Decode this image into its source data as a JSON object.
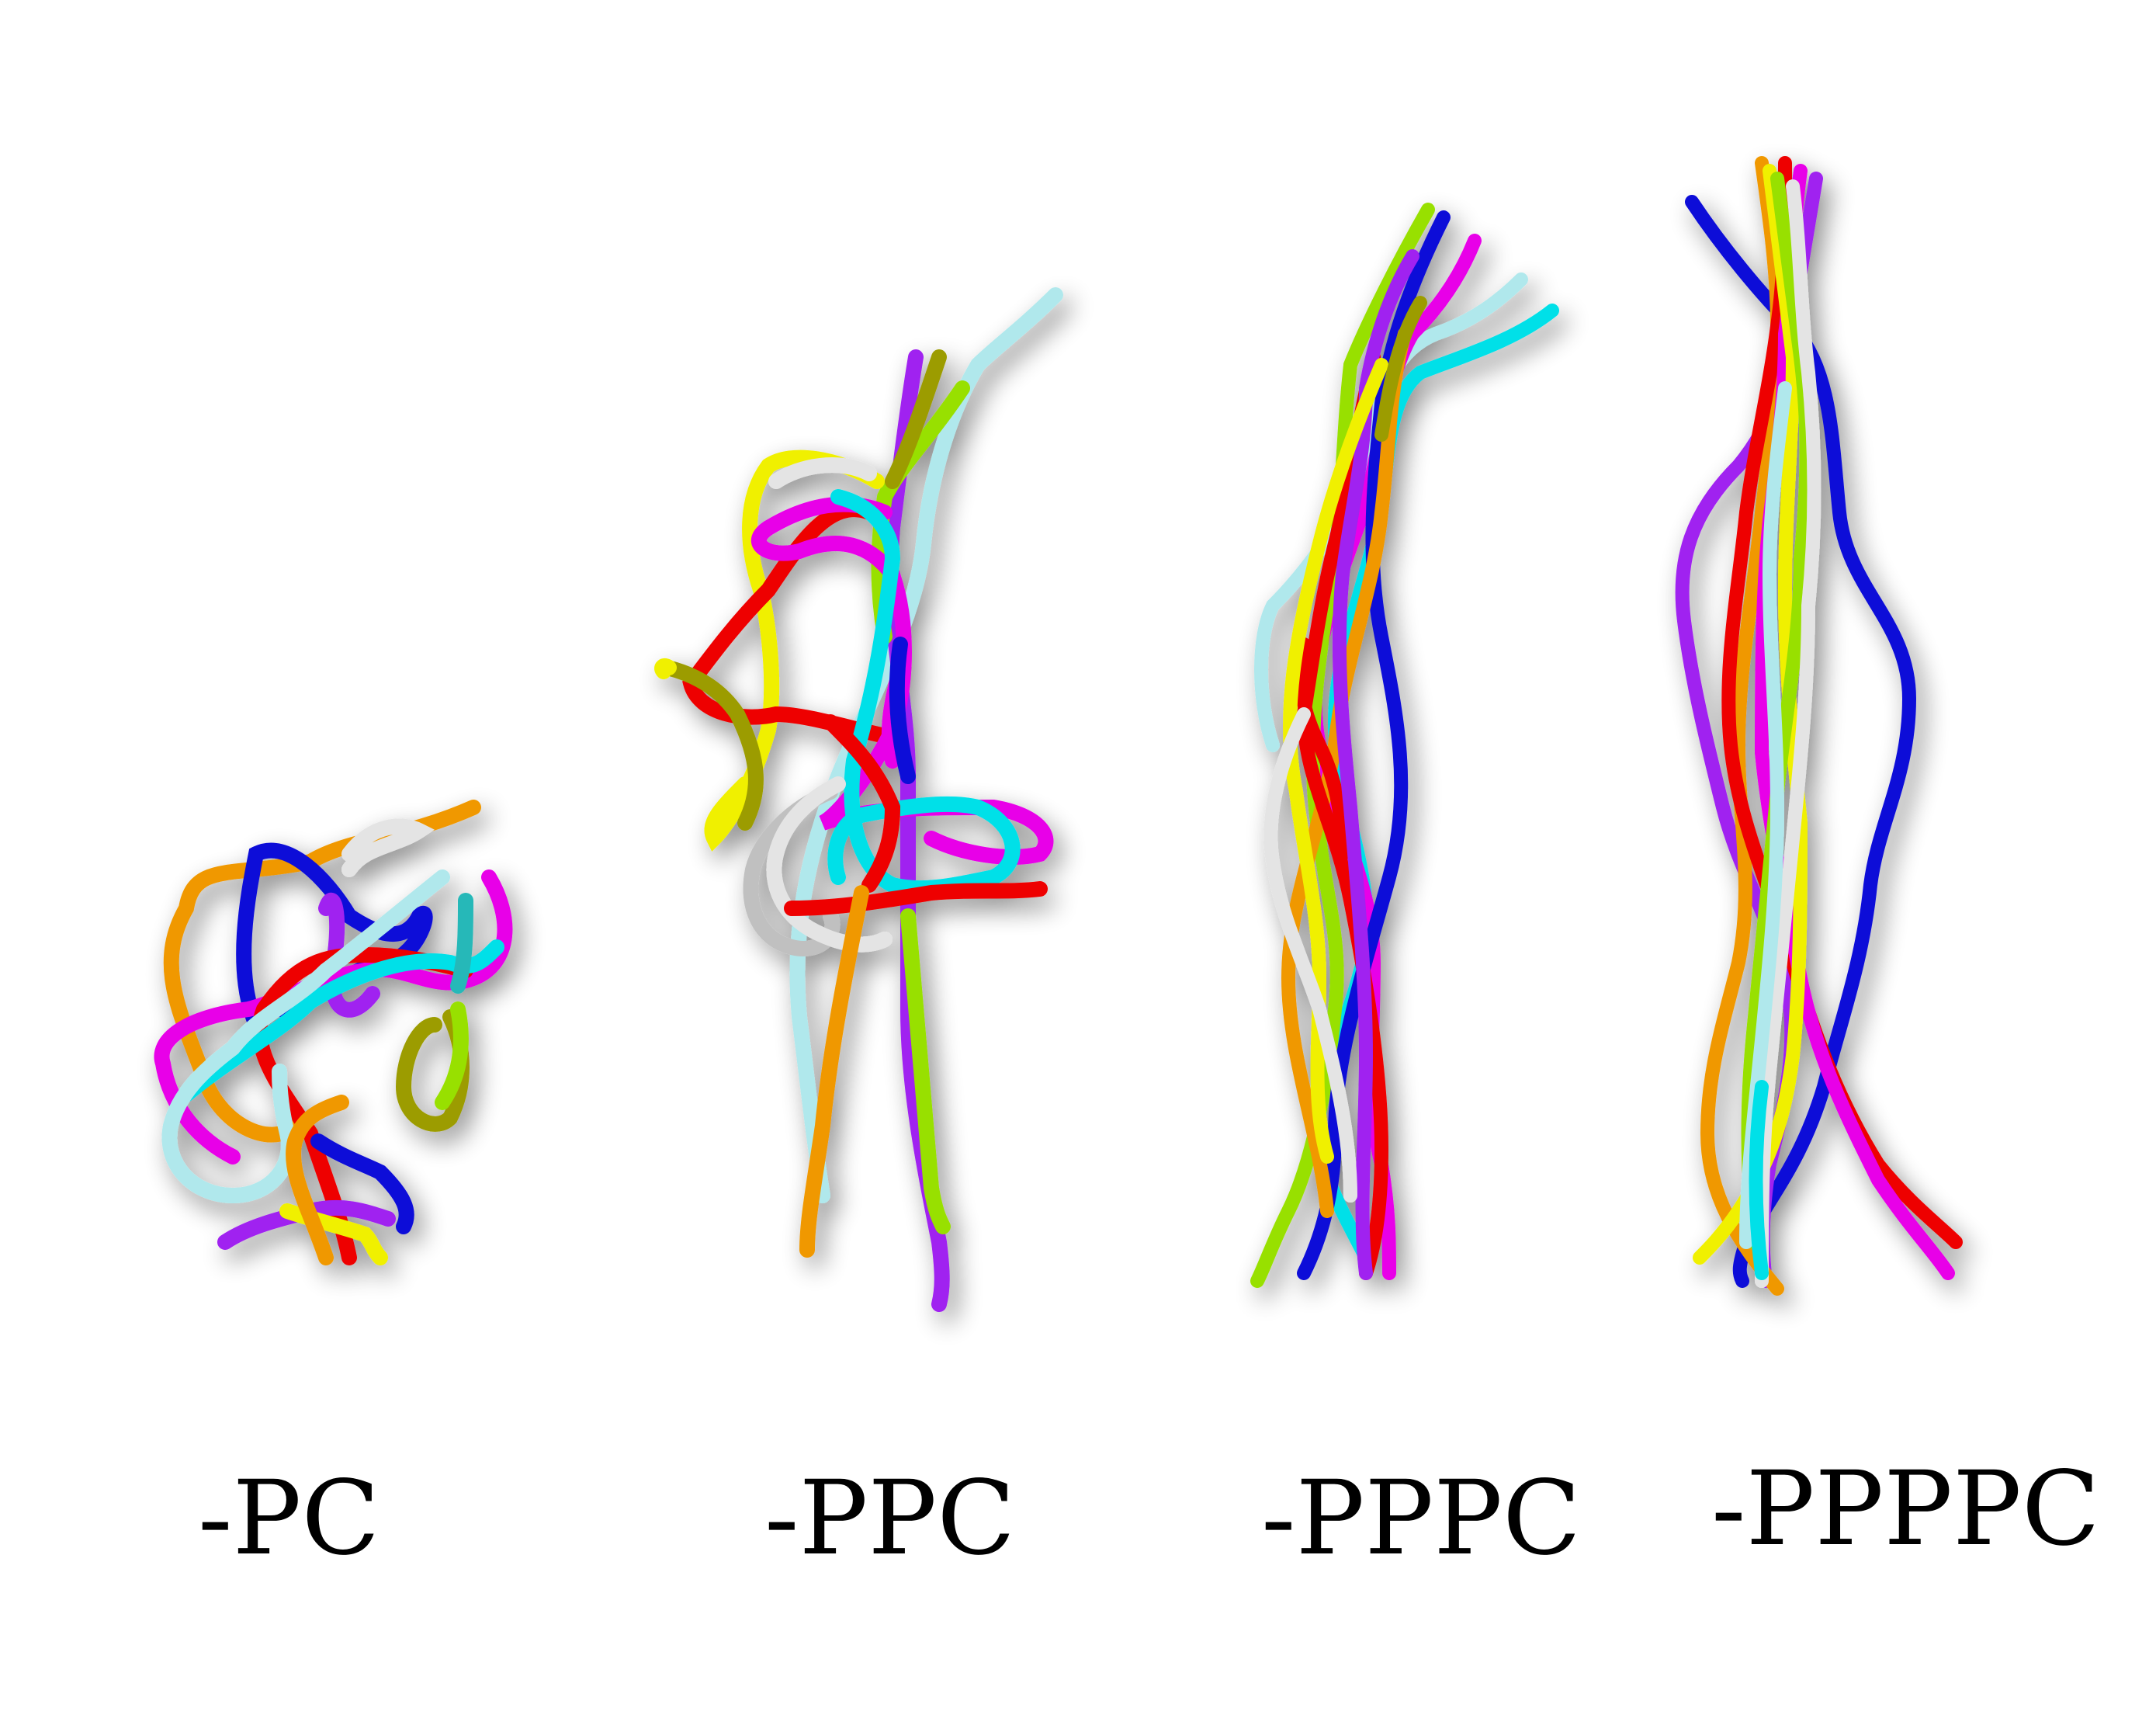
{
  "panels": [
    {
      "label": "-PC"
    },
    {
      "label": "-PPC"
    },
    {
      "label": "-PPPC"
    },
    {
      "label": "-PPPPC"
    }
  ],
  "strand_colors": [
    "#1010d8",
    "#f09800",
    "#ee0000",
    "#e800e8",
    "#00e0e8",
    "#98e000",
    "#a020f0",
    "#f0f000",
    "#b0e8ec",
    "#e4e4e4",
    "#9c9c00"
  ]
}
